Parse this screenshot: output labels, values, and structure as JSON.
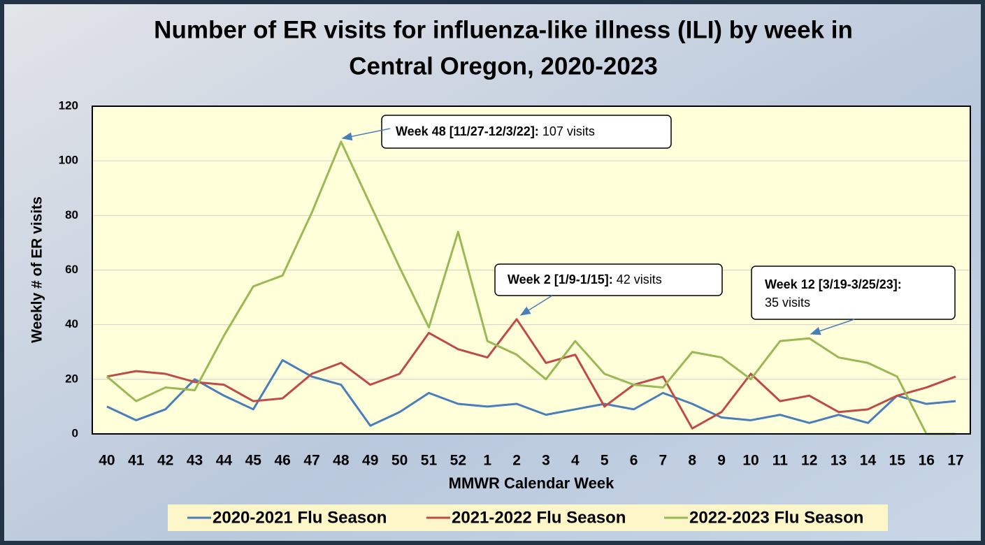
{
  "chart_data": {
    "type": "line",
    "title": [
      "Number of ER visits for influenza-like illness (ILI) by week in",
      "Central Oregon, 2020-2023"
    ],
    "xlabel": "MMWR Calendar Week",
    "ylabel": "Weekly # of ER visits",
    "categories": [
      "40",
      "41",
      "42",
      "43",
      "44",
      "45",
      "46",
      "47",
      "48",
      "49",
      "50",
      "51",
      "52",
      "1",
      "2",
      "3",
      "4",
      "5",
      "6",
      "7",
      "8",
      "9",
      "10",
      "11",
      "12",
      "13",
      "14",
      "15",
      "16",
      "17"
    ],
    "series": [
      {
        "name": "2020-2021 Flu Season",
        "color": "#4a7ebb",
        "values": [
          10,
          5,
          9,
          20,
          14,
          9,
          27,
          21,
          18,
          3,
          8,
          15,
          11,
          10,
          11,
          7,
          9,
          11,
          9,
          15,
          11,
          6,
          5,
          7,
          4,
          7,
          4,
          14,
          11,
          12
        ]
      },
      {
        "name": "2021-2022 Flu Season",
        "color": "#be4b48",
        "values": [
          21,
          23,
          22,
          19,
          18,
          12,
          13,
          22,
          26,
          18,
          22,
          37,
          31,
          28,
          42,
          26,
          29,
          10,
          18,
          21,
          2,
          8,
          22,
          12,
          14,
          8,
          9,
          14,
          17,
          21
        ]
      },
      {
        "name": "2022-2023 Flu Season",
        "color": "#98b954",
        "values": [
          21,
          12,
          17,
          16,
          36,
          54,
          58,
          81,
          107,
          84,
          61,
          39,
          74,
          34,
          29,
          20,
          34,
          22,
          18,
          17,
          30,
          28,
          20,
          34,
          35,
          28,
          26,
          21,
          0,
          0
        ]
      }
    ],
    "ylim": [
      0,
      120
    ],
    "yticks": [
      0,
      20,
      40,
      60,
      80,
      100,
      120
    ],
    "grid": true,
    "annotations": [
      {
        "bold": "Week 48 [11/27-12/3/22]:",
        "text": " 107 visits"
      },
      {
        "bold": "Week 2 [1/9-1/15]:",
        "text": " 42 visits"
      },
      {
        "bold": "Week 12 [3/19-3/25/23]:",
        "text": "35 visits"
      }
    ]
  }
}
